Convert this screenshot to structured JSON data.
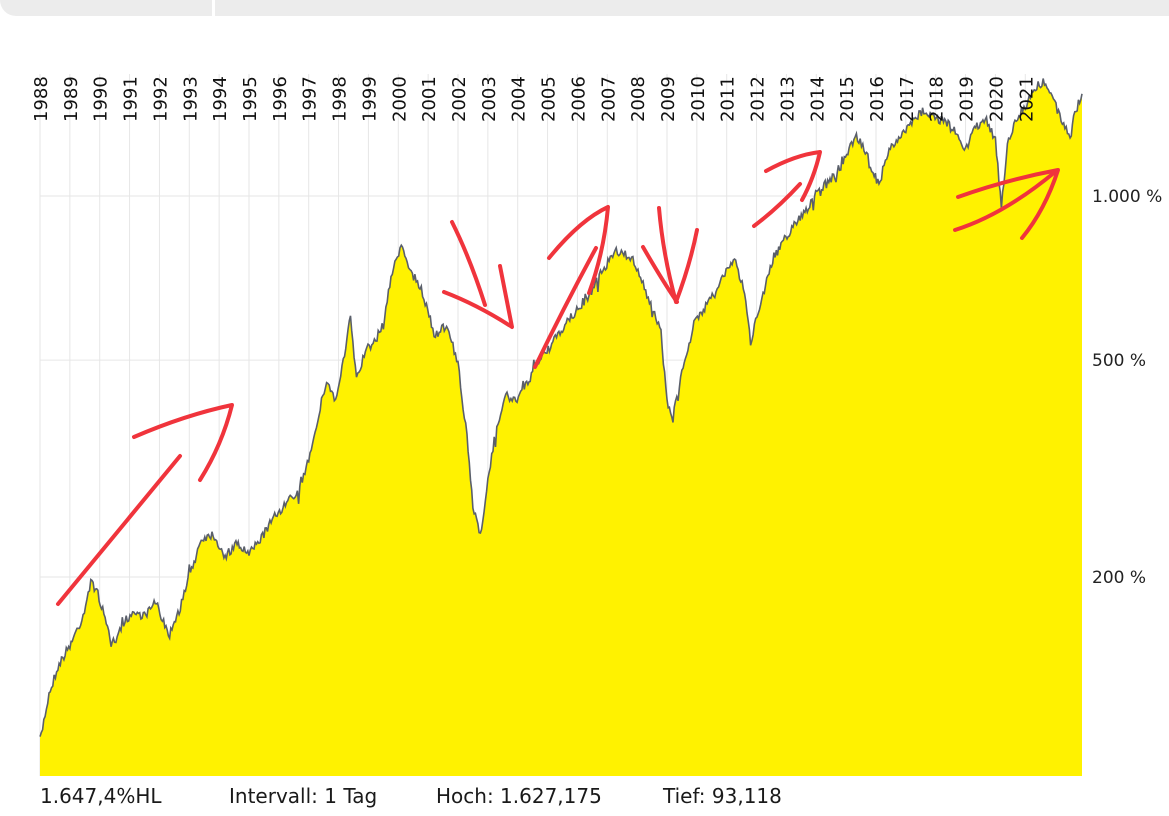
{
  "footer": {
    "performance": "1.647,4%HL",
    "interval": "Intervall: 1 Tag",
    "high": "Hoch: 1.627,175",
    "low": "Tief:  93,118"
  },
  "colors": {
    "area_fill": "#fff200",
    "price_line": "#5a5f6a",
    "annotation": "#f0343c",
    "grid": "#e6e6e6"
  },
  "chart_data": {
    "type": "area",
    "title": "",
    "xlabel": "",
    "ylabel": "",
    "y_scale": "log",
    "ylim": [
      93,
      1650
    ],
    "yticks": [
      {
        "value": 200,
        "label": "200 %"
      },
      {
        "value": 500,
        "label": "500 %"
      },
      {
        "value": 1000,
        "label": "1.000 %"
      }
    ],
    "xlim": [
      1988.0,
      2022.9
    ],
    "xticks": [
      "1988",
      "1989",
      "1990",
      "1991",
      "1992",
      "1993",
      "1994",
      "1995",
      "1996",
      "1997",
      "1998",
      "1999",
      "2000",
      "2001",
      "2002",
      "2003",
      "2004",
      "2005",
      "2006",
      "2007",
      "2008",
      "2009",
      "2010",
      "2011",
      "2012",
      "2013",
      "2014",
      "2015",
      "2016",
      "2017",
      "2018",
      "2019",
      "2020",
      "2021"
    ],
    "grid": true,
    "series": [
      {
        "x": [
          1988.0,
          1988.3,
          1988.6,
          1989.0,
          1989.4,
          1989.7,
          1989.9,
          1990.3,
          1990.5,
          1990.8,
          1991.1,
          1991.5,
          1991.9,
          1992.3,
          1992.7,
          1993.0,
          1993.4,
          1993.8,
          1994.2,
          1994.6,
          1995.0,
          1995.5,
          1995.9,
          1996.3,
          1996.7,
          1997.0,
          1997.3,
          1997.6,
          1997.9,
          1998.2,
          1998.4,
          1998.6,
          1998.9,
          1999.2,
          1999.5,
          1999.8,
          2000.1,
          2000.3,
          2000.6,
          2000.9,
          2001.2,
          2001.5,
          2001.7,
          2002.0,
          2002.3,
          2002.5,
          2002.75,
          2003.0,
          2003.3,
          2003.6,
          2003.9,
          2004.3,
          2004.7,
          2005.1,
          2005.5,
          2005.9,
          2006.3,
          2006.6,
          2006.9,
          2007.3,
          2007.6,
          2007.9,
          2008.2,
          2008.5,
          2008.8,
          2009.0,
          2009.2,
          2009.5,
          2009.9,
          2010.3,
          2010.6,
          2010.9,
          2011.3,
          2011.6,
          2011.8,
          2012.1,
          2012.5,
          2012.9,
          2013.3,
          2013.7,
          2014.1,
          2014.5,
          2014.9,
          2015.3,
          2015.6,
          2015.9,
          2016.1,
          2016.4,
          2016.8,
          2017.2,
          2017.6,
          2017.9,
          2018.3,
          2018.7,
          2019.0,
          2019.3,
          2019.7,
          2020.0,
          2020.2,
          2020.4,
          2020.7,
          2021.0,
          2021.3,
          2021.6,
          2021.9,
          2022.2,
          2022.5,
          2022.7,
          2022.9
        ],
        "values": [
          100,
          122,
          137,
          150,
          167,
          195,
          190,
          158,
          150,
          165,
          172,
          170,
          180,
          155,
          176,
          200,
          235,
          240,
          218,
          230,
          220,
          240,
          260,
          275,
          290,
          330,
          390,
          460,
          420,
          510,
          600,
          460,
          520,
          540,
          580,
          730,
          810,
          760,
          700,
          650,
          550,
          580,
          560,
          490,
          360,
          270,
          240,
          300,
          380,
          430,
          420,
          450,
          500,
          530,
          570,
          610,
          640,
          690,
          740,
          790,
          780,
          760,
          690,
          620,
          560,
          420,
          390,
          480,
          580,
          630,
          660,
          720,
          760,
          660,
          540,
          630,
          750,
          830,
          890,
          950,
          1030,
          1070,
          1150,
          1290,
          1230,
          1110,
          1050,
          1200,
          1280,
          1360,
          1440,
          1400,
          1370,
          1310,
          1220,
          1330,
          1380,
          1270,
          960,
          1240,
          1390,
          1460,
          1580,
          1620,
          1530,
          1370,
          1290,
          1440,
          1540
        ]
      }
    ],
    "annotations": "hand-drawn red arrows"
  }
}
